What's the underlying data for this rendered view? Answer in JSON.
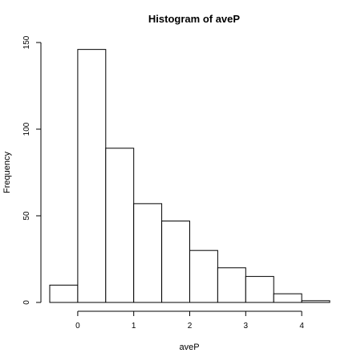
{
  "chart_data": {
    "type": "bar",
    "title": "Histogram of aveP",
    "xlabel": "aveP",
    "ylabel": "Frequency",
    "bins": [
      {
        "start": -0.5,
        "end": 0.0,
        "count": 10
      },
      {
        "start": 0.0,
        "end": 0.5,
        "count": 146
      },
      {
        "start": 0.5,
        "end": 1.0,
        "count": 89
      },
      {
        "start": 1.0,
        "end": 1.5,
        "count": 57
      },
      {
        "start": 1.5,
        "end": 2.0,
        "count": 47
      },
      {
        "start": 2.0,
        "end": 2.5,
        "count": 30
      },
      {
        "start": 2.5,
        "end": 3.0,
        "count": 20
      },
      {
        "start": 3.0,
        "end": 3.5,
        "count": 15
      },
      {
        "start": 3.5,
        "end": 4.0,
        "count": 5
      },
      {
        "start": 4.0,
        "end": 4.5,
        "count": 1
      }
    ],
    "xticks": [
      0,
      1,
      2,
      3,
      4
    ],
    "yticks": [
      0,
      50,
      100,
      150
    ],
    "xlim": [
      -0.5,
      4.5
    ],
    "ylim": [
      0,
      150
    ],
    "grid": false
  }
}
